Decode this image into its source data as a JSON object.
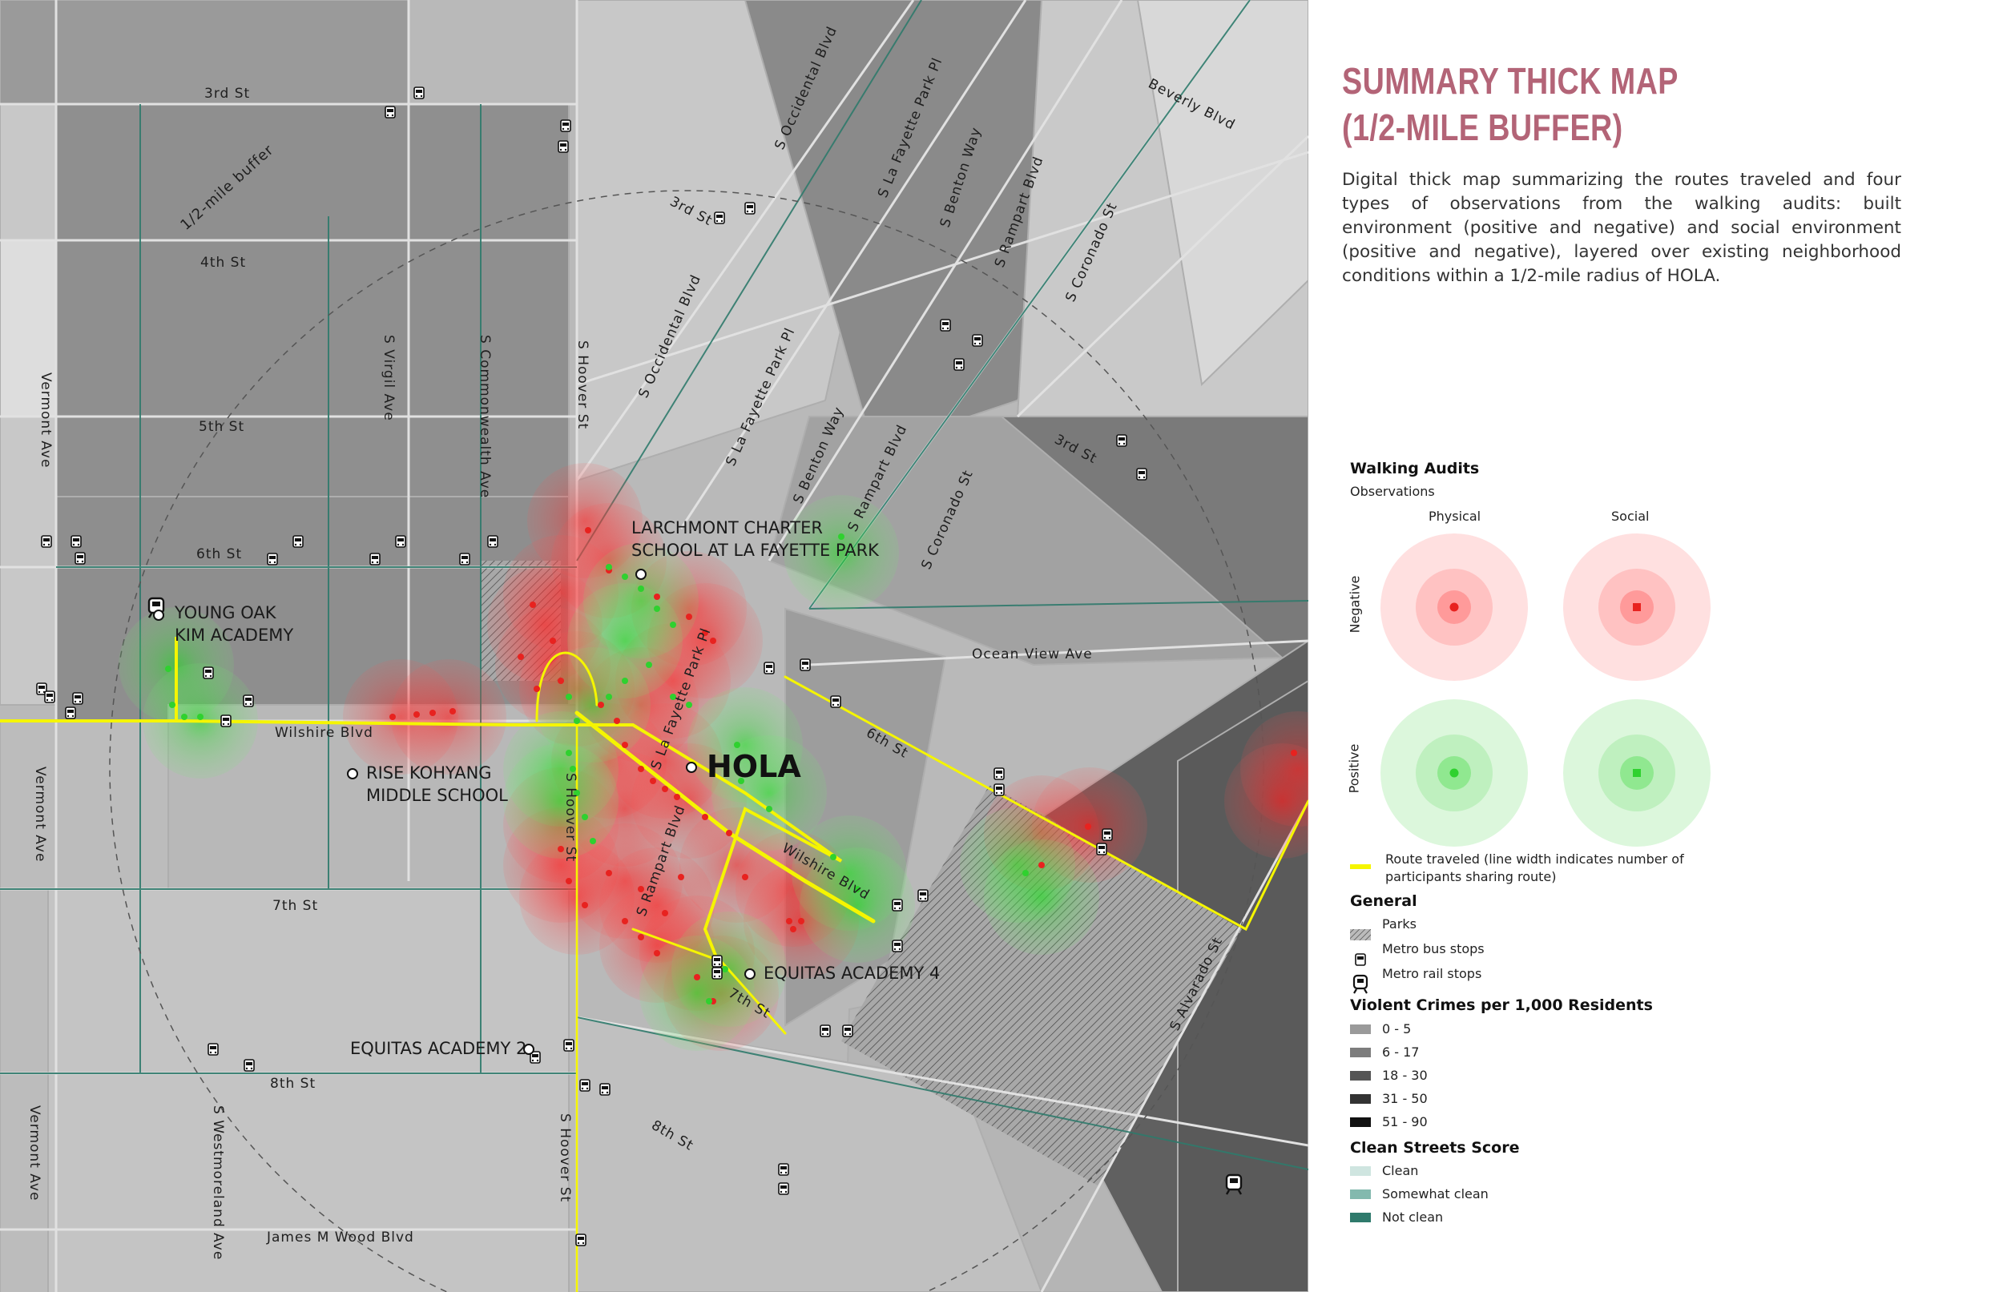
{
  "title": {
    "line1": "SUMMARY THICK MAP",
    "line2": "(1/2-MILE BUFFER)"
  },
  "description": "Digital thick map summarizing the routes traveled and four types of observations from the walking audits: built environment (positive and negative) and social environment (positive and negative), layered over existing neighborhood conditions within a 1/2-mile radius of HOLA.",
  "map": {
    "buffer_label": "1/2-mile buffer",
    "center_label": "HOLA",
    "schools": [
      {
        "line1": "LARCHMONT CHARTER",
        "line2": "SCHOOL AT LA FAYETTE PARK"
      },
      {
        "line1": "YOUNG OAK",
        "line2": "KIM ACADEMY"
      },
      {
        "line1": "RISE KOHYANG",
        "line2": "MIDDLE SCHOOL"
      },
      {
        "line1": "EQUITAS ACADEMY 4",
        "line2": ""
      },
      {
        "line1": "EQUITAS ACADEMY 2",
        "line2": ""
      }
    ],
    "streets": [
      "3rd St",
      "4th St",
      "5th St",
      "6th St",
      "Wilshire Blvd",
      "7th St",
      "8th St",
      "James M Wood Blvd",
      "Vermont Ave",
      "Vermont Ave",
      "Vermont Ave",
      "S Virgil Ave",
      "S Commonwealth Ave",
      "S Hoover St",
      "S Hoover St",
      "S Hoover St",
      "S Westmoreland Ave",
      "S Occidental Blvd",
      "S Occidental Blvd",
      "S La Fayette Park Pl",
      "S La Fayette Park Pl",
      "S La Fayette Park Pl",
      "S Benton Way",
      "S Benton Way",
      "S Rampart Blvd",
      "S Rampart Blvd",
      "S Rampart Blvd",
      "S Coronado St",
      "S Coronado St",
      "Beverly Blvd",
      "3rd St",
      "3rd St",
      "Ocean View Ave",
      "6th St",
      "Wilshire Blvd",
      "7th St",
      "8th St",
      "S Alvarado St"
    ]
  },
  "legend": {
    "walking_audits": {
      "title": "Walking Audits",
      "subtitle": "Observations",
      "col_physical": "Physical",
      "col_social": "Social",
      "row_negative": "Negative",
      "row_positive": "Positive",
      "negative_color": "#e8221f",
      "positive_color": "#2fd12f"
    },
    "route": {
      "label": "Route traveled (line width indicates number of participants sharing route)",
      "color": "#f5f500"
    },
    "general": {
      "title": "General",
      "items": [
        "Parks",
        "Metro bus stops",
        "Metro rail stops"
      ],
      "icons": [
        "hatch-icon",
        "bus-icon",
        "train-icon"
      ]
    },
    "crime": {
      "title": "Violent Crimes per 1,000 Residents",
      "items": [
        {
          "label": "0 - 5",
          "color": "#9a9a9a"
        },
        {
          "label": "6 - 17",
          "color": "#7d7d7d"
        },
        {
          "label": "18 - 30",
          "color": "#555555"
        },
        {
          "label": "31 - 50",
          "color": "#333333"
        },
        {
          "label": "51 - 90",
          "color": "#111111"
        }
      ]
    },
    "clean": {
      "title": "Clean Streets Score",
      "items": [
        {
          "label": "Clean",
          "color": "#cfe5e0"
        },
        {
          "label": "Somewhat clean",
          "color": "#83b9ae"
        },
        {
          "label": "Not clean",
          "color": "#2f7a6c"
        }
      ]
    }
  }
}
